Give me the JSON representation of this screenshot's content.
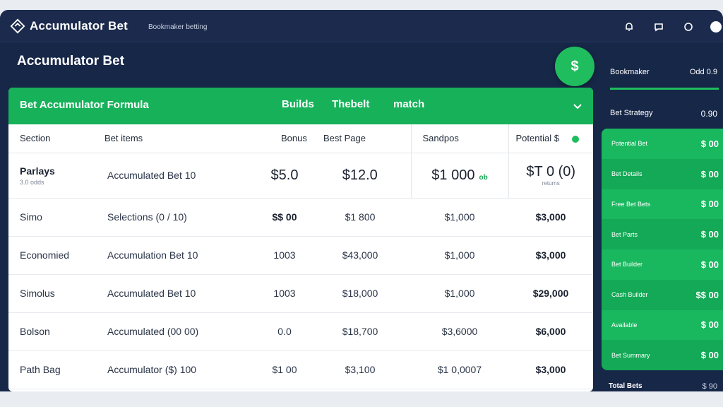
{
  "app": {
    "title": "Accumulator Bet",
    "subtitle": "Bookmaker betting"
  },
  "page": {
    "title": "Accumulator Bet"
  },
  "fab": {
    "label": "$"
  },
  "card": {
    "title": "Bet Accumulator Formula",
    "tabs": [
      "Builds",
      "Thebelt",
      "match"
    ]
  },
  "table": {
    "headers": [
      "Section",
      "Bet items",
      "Bonus",
      "Best Page",
      "Sandpos",
      "Potential $"
    ],
    "first_row": {
      "label": "Parlays",
      "sublabel": "3.0 odds",
      "item": "Accumulated Bet 10",
      "bonus": "$5.0",
      "best": "$12.0",
      "sandpos": "$1 000",
      "sandpos_badge": "ob",
      "potential": "$T 0 (0)",
      "potential_sub": "returns"
    },
    "rows": [
      {
        "label": "Simo",
        "item": "Selections (0 / 10)",
        "bonus": "$$ 00",
        "best": "$1 800",
        "sandpos": "$1,000",
        "potential": "$3,000"
      },
      {
        "label": "Economied",
        "item": "Accumulation Bet 10",
        "bonus": "1003",
        "best": "$43,000",
        "sandpos": "$1,000",
        "potential": "$3,000"
      },
      {
        "label": "Simolus",
        "item": "Accumulated Bet 10",
        "bonus": "1003",
        "best": "$18,000",
        "sandpos": "$1,000",
        "potential": "$29,000"
      },
      {
        "label": "Bolson",
        "item": "Accumulated (00 00)",
        "bonus": "0.0",
        "best": "$18,700",
        "sandpos": "$3,6000",
        "potential": "$6,000"
      },
      {
        "label": "Path Bag",
        "item": "Accumulator ($) 100",
        "bonus": "$1 00",
        "best": "$3,100",
        "sandpos": "$1 0,0007",
        "potential": "$3,000"
      }
    ]
  },
  "sidebar": {
    "header": {
      "label": "Bookmaker",
      "value": "Odd 0.9"
    },
    "sub": {
      "label": "Bet Strategy",
      "value": "0.90"
    },
    "items": [
      {
        "label": "Potential Bet",
        "value": "$ 00"
      },
      {
        "label": "Bet Details",
        "value": "$ 00"
      },
      {
        "label": "Free Bet Bets",
        "value": "$ 00"
      },
      {
        "label": "Bet Parts",
        "value": "$ 00"
      },
      {
        "label": "Bet Builder",
        "value": "$ 00"
      },
      {
        "label": "Cash Builder",
        "value": "$$ 00"
      },
      {
        "label": "Available",
        "value": "$ 00"
      },
      {
        "label": "Bet Summary",
        "value": "$ 00"
      }
    ],
    "footer": {
      "label": "Total Bets",
      "value": "$ 90"
    }
  },
  "colors": {
    "navy": "#172748",
    "green": "#17b15a",
    "accent": "#1fbd5d"
  }
}
